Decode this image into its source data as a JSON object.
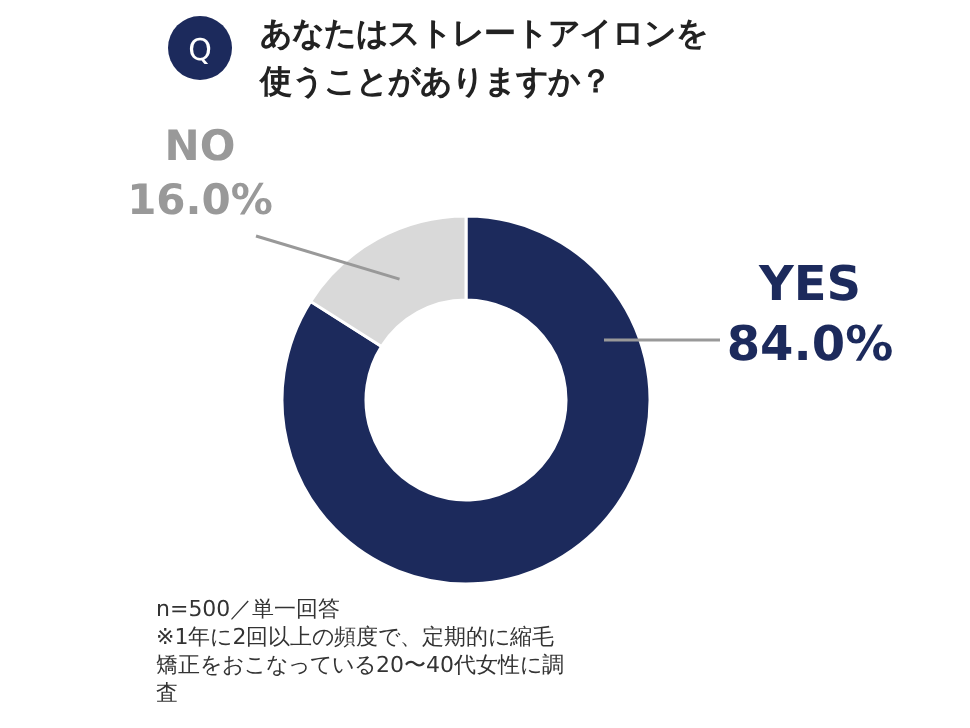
{
  "chart_data": {
    "type": "donut",
    "title": "あなたはストレートアイロンを使うことがありますか？",
    "categories": [
      "YES",
      "NO"
    ],
    "values": [
      84.0,
      16.0
    ],
    "value_labels": [
      "84.0%",
      "16.0%"
    ],
    "colors": [
      "#1c2a5c",
      "#d9d9d9"
    ],
    "annotations": [
      "Q",
      "n=500／単一回答",
      "※1年に2回以上の頻度で、定期的に縮毛矯正をおこなっている20〜40代女性に調査"
    ]
  }
}
